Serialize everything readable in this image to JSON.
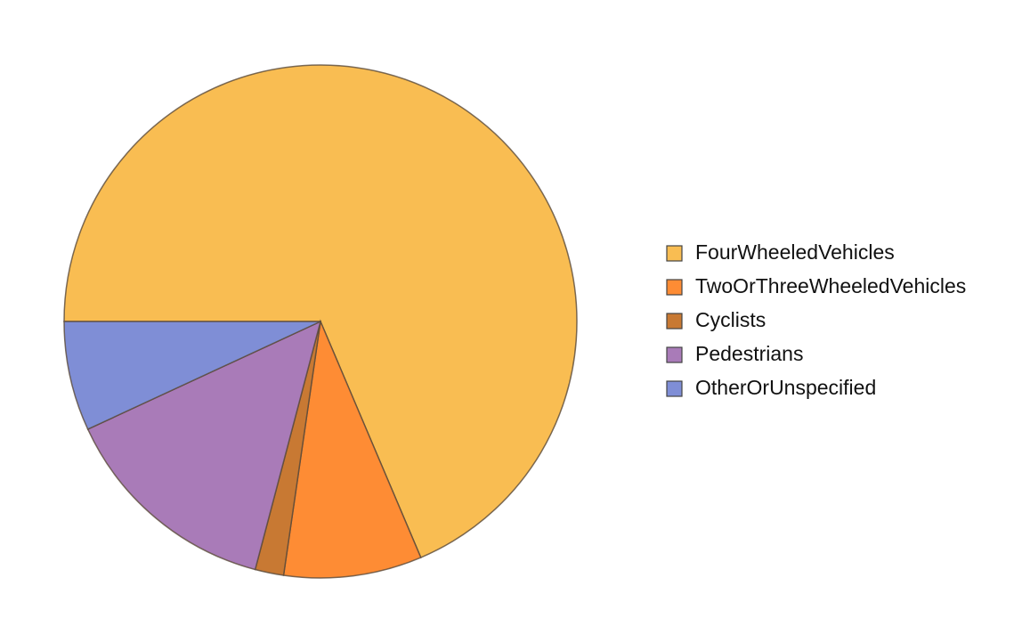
{
  "chart_data": {
    "type": "pie",
    "categories": [
      "FourWheeledVehicles",
      "TwoOrThreeWheeledVehicles",
      "Cyclists",
      "Pedestrians",
      "OtherOrUnspecified"
    ],
    "values": [
      68.6,
      8.7,
      1.8,
      14.0,
      6.9
    ],
    "colors": [
      "#f9bd52",
      "#fe8c34",
      "#c87933",
      "#a97bb8",
      "#7f8ed6"
    ],
    "legend": "right"
  }
}
